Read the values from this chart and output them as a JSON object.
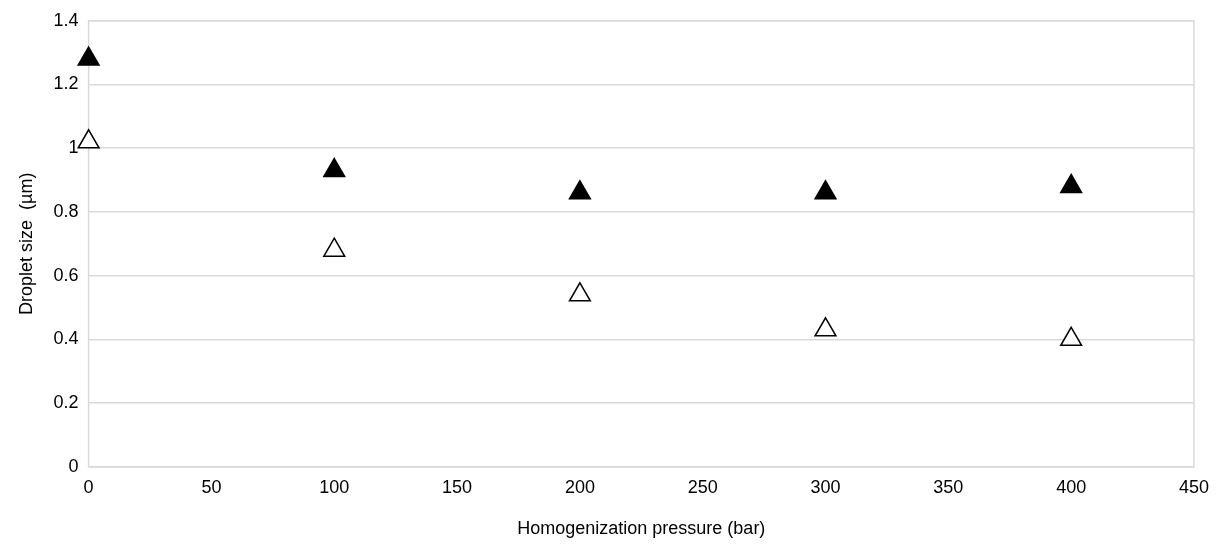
{
  "chart_data": {
    "type": "scatter",
    "xlabel": "Homogenization pressure (bar)",
    "ylabel": "Droplet size  (µm)",
    "x": [
      0,
      100,
      200,
      300,
      400
    ],
    "series": [
      {
        "color": "#000000",
        "values": [
          1.28,
          0.93,
          0.86,
          0.86,
          0.88
        ]
      },
      {
        "color": "#ffffff",
        "values": [
          1.02,
          0.68,
          0.54,
          0.43,
          0.4
        ]
      }
    ],
    "xlim": [
      0,
      450
    ],
    "xticks": [
      0,
      50,
      100,
      150,
      200,
      250,
      300,
      350,
      400,
      450
    ],
    "ylim": [
      0,
      1.4
    ],
    "yticks": [
      0,
      0.2,
      0.4,
      0.6,
      0.8,
      1,
      1.2,
      1.4
    ],
    "grid": "y",
    "legend": false,
    "marker": "triangle"
  }
}
